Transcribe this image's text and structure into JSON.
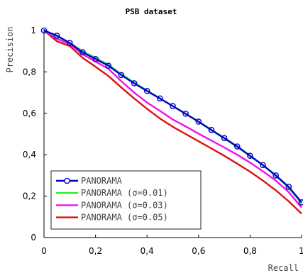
{
  "chart_data": {
    "type": "line",
    "title": "PSB dataset",
    "xlabel": "Recall",
    "ylabel": "Precision",
    "xlim": [
      0,
      1
    ],
    "ylim": [
      0,
      1
    ],
    "x_ticks": [
      "0",
      "0,2",
      "0,4",
      "0,6",
      "0,8",
      "1"
    ],
    "y_ticks": [
      "0",
      "0,2",
      "0,4",
      "0,6",
      "0,8",
      "1"
    ],
    "grid": false,
    "legend_position": "bottom-left",
    "x": [
      0,
      0.05,
      0.1,
      0.15,
      0.2,
      0.25,
      0.3,
      0.35,
      0.4,
      0.45,
      0.5,
      0.55,
      0.6,
      0.65,
      0.7,
      0.75,
      0.8,
      0.85,
      0.9,
      0.95,
      1.0
    ],
    "series": [
      {
        "name": "PANORAMA",
        "color": "#0000cc",
        "marker": "circle",
        "values": [
          1.0,
          0.975,
          0.94,
          0.895,
          0.862,
          0.83,
          0.785,
          0.745,
          0.708,
          0.672,
          0.635,
          0.598,
          0.56,
          0.52,
          0.48,
          0.44,
          0.395,
          0.35,
          0.3,
          0.245,
          0.17
        ]
      },
      {
        "name": "PANORAMA (σ=0.01)",
        "color": "#33ee33",
        "marker": "none",
        "values": [
          1.0,
          0.972,
          0.94,
          0.9,
          0.868,
          0.835,
          0.79,
          0.748,
          0.71,
          0.672,
          0.635,
          0.597,
          0.558,
          0.518,
          0.478,
          0.437,
          0.393,
          0.348,
          0.298,
          0.24,
          0.165
        ]
      },
      {
        "name": "PANORAMA (σ=0.03)",
        "color": "#ee11ee",
        "marker": "none",
        "values": [
          1.0,
          0.96,
          0.935,
          0.885,
          0.85,
          0.815,
          0.755,
          0.7,
          0.652,
          0.612,
          0.57,
          0.537,
          0.502,
          0.468,
          0.435,
          0.4,
          0.362,
          0.32,
          0.275,
          0.22,
          0.145
        ]
      },
      {
        "name": "PANORAMA (σ=0.05)",
        "color": "#dd1111",
        "marker": "none",
        "values": [
          1.0,
          0.948,
          0.925,
          0.868,
          0.825,
          0.78,
          0.725,
          0.672,
          0.622,
          0.575,
          0.535,
          0.5,
          0.465,
          0.43,
          0.395,
          0.357,
          0.318,
          0.275,
          0.228,
          0.175,
          0.115
        ]
      }
    ]
  },
  "legend": {
    "items": [
      {
        "label": "PANORAMA",
        "color": "#0000cc",
        "marker": "circle"
      },
      {
        "label": "PANORAMA (σ=0.01)",
        "color": "#33ee33",
        "marker": "none"
      },
      {
        "label": "PANORAMA (σ=0.03)",
        "color": "#ee11ee",
        "marker": "none"
      },
      {
        "label": "PANORAMA (σ=0.05)",
        "color": "#dd1111",
        "marker": "none"
      }
    ]
  }
}
